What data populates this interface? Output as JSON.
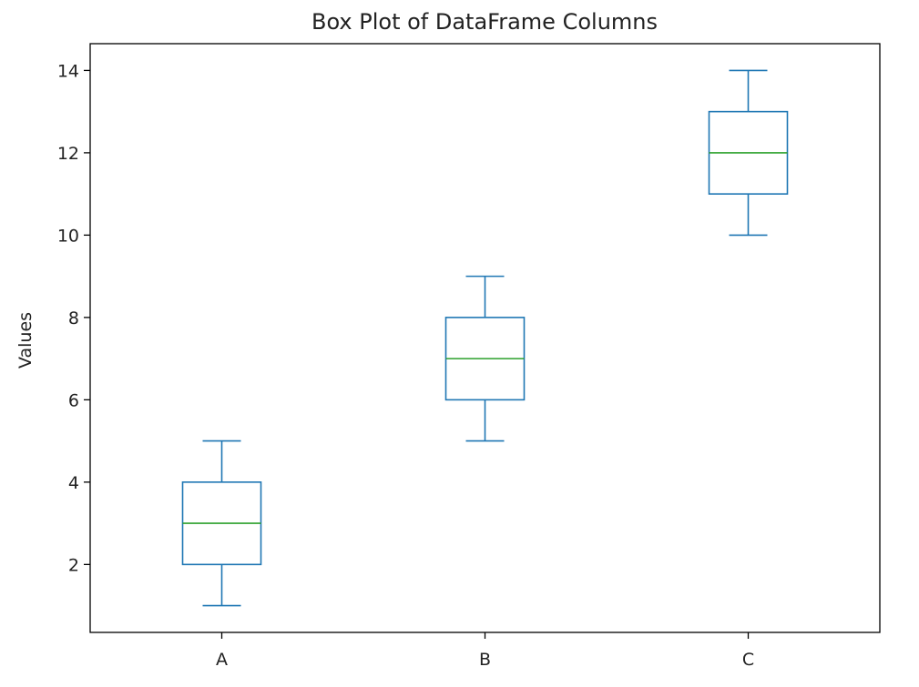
{
  "chart_data": {
    "type": "box",
    "title": "Box Plot of DataFrame Columns",
    "xlabel": "",
    "ylabel": "Values",
    "categories": [
      "A",
      "B",
      "C"
    ],
    "boxes": [
      {
        "name": "A",
        "whisker_low": 1,
        "q1": 2,
        "median": 3,
        "q3": 4,
        "whisker_high": 5
      },
      {
        "name": "B",
        "whisker_low": 5,
        "q1": 6,
        "median": 7,
        "q3": 8,
        "whisker_high": 9
      },
      {
        "name": "C",
        "whisker_low": 10,
        "q1": 11,
        "median": 12,
        "q3": 13,
        "whisker_high": 14
      }
    ],
    "yticks": [
      2,
      4,
      6,
      8,
      10,
      12,
      14
    ],
    "ylim": [
      0.35,
      14.65
    ],
    "grid": false,
    "colors": {
      "box": "#1f77b4",
      "median": "#2ca02c",
      "axis": "#000000"
    }
  }
}
